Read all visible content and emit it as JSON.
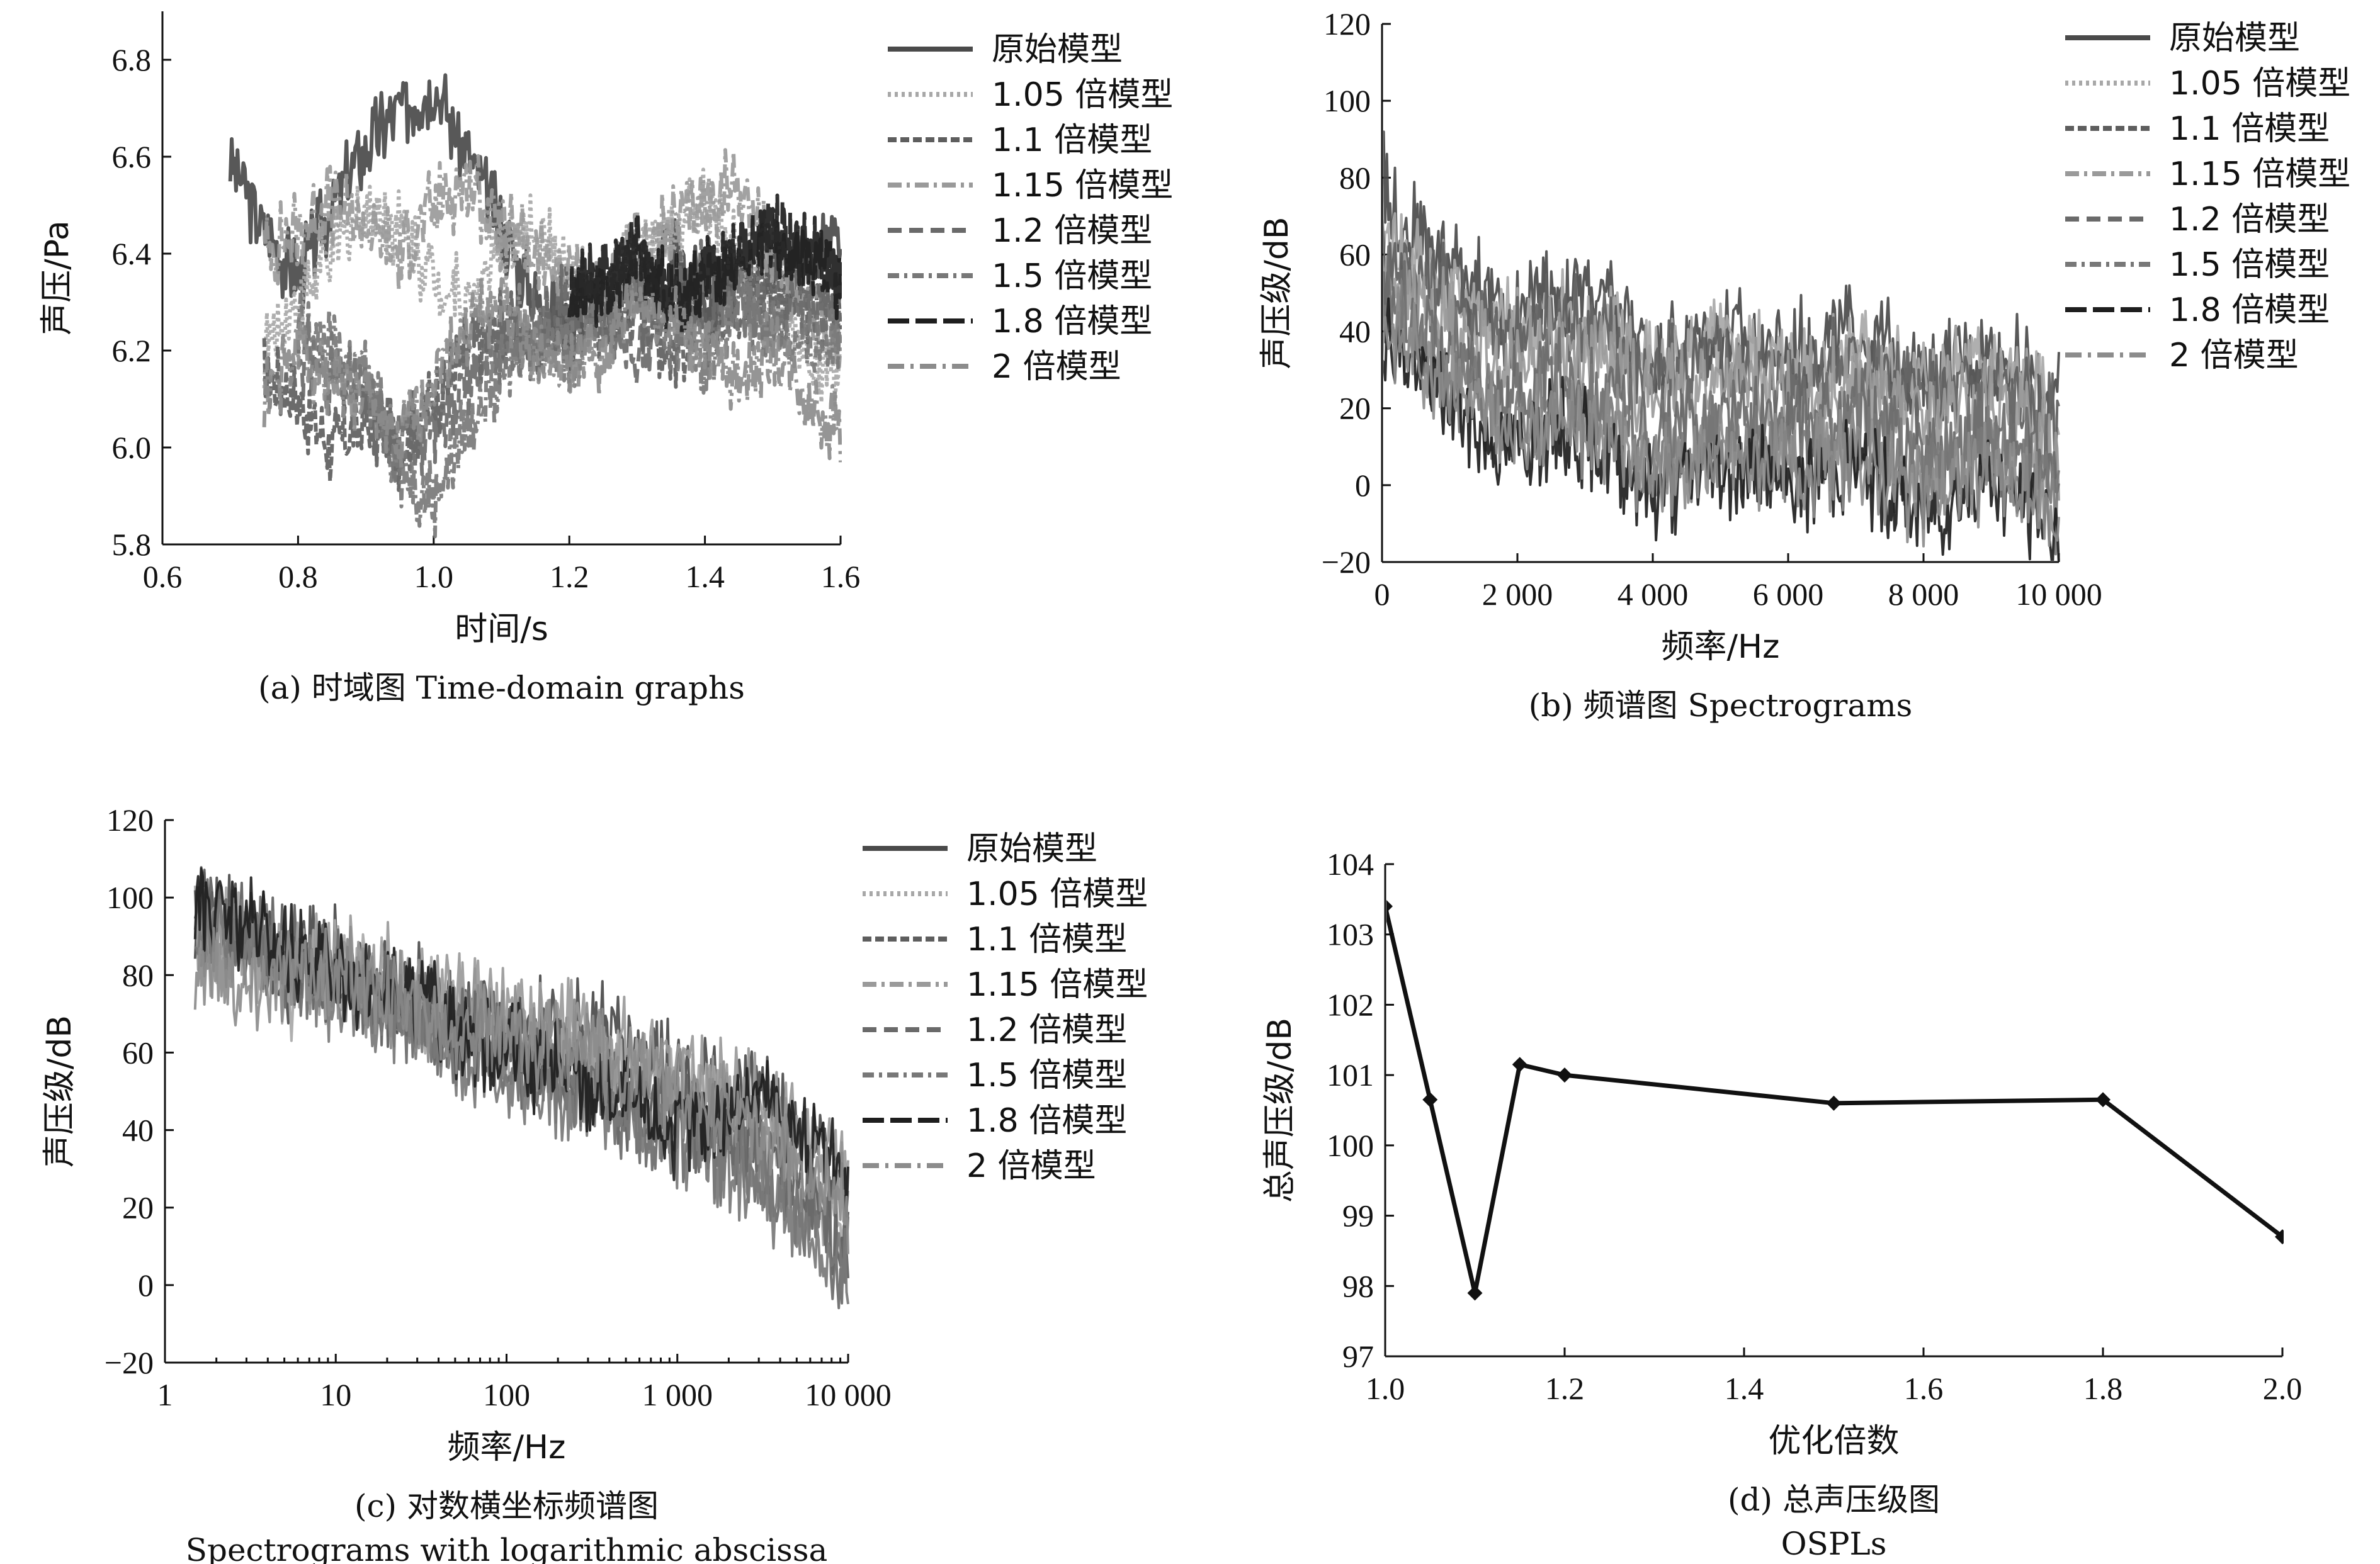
{
  "colors": {
    "original": "#4a4a4a",
    "m105": "#a8a8a8",
    "m11": "#5e5e5e",
    "m115": "#9a9a9a",
    "m12": "#6a6a6a",
    "m15": "#787878",
    "m18": "#1e1e1e",
    "m2": "#8c8c8c",
    "ospl": "#111111"
  },
  "legend": [
    {
      "label": "原始模型",
      "dash": "",
      "key": "original"
    },
    {
      "label": "1.05 倍模型",
      "dash": "5 6",
      "key": "m105"
    },
    {
      "label": "1.1 倍模型",
      "dash": "14 6",
      "key": "m11"
    },
    {
      "label": "1.15 倍模型",
      "dash": "22 8 5 8",
      "key": "m115"
    },
    {
      "label": "1.2 倍模型",
      "dash": "22 12",
      "key": "m12"
    },
    {
      "label": "1.5 倍模型",
      "dash": "18 8 5 8",
      "key": "m15"
    },
    {
      "label": "1.8 倍模型",
      "dash": "34 10",
      "key": "m18"
    },
    {
      "label": "2 倍模型",
      "dash": "26 10 5 10",
      "key": "m2"
    }
  ],
  "chart_data": [
    {
      "id": "a",
      "type": "line",
      "caption": "(a) 时域图 Time-domain graphs",
      "xlabel": "时间/s",
      "ylabel": "声压/Pa",
      "xlim": [
        0.6,
        1.6
      ],
      "ylim": [
        5.8,
        6.9
      ],
      "xticks": [
        0.6,
        0.8,
        1.0,
        1.2,
        1.4,
        1.6
      ],
      "xtick_labels": [
        "0.6",
        "0.8",
        "1.0",
        "1.2",
        "1.4",
        "1.6"
      ],
      "yticks": [
        5.8,
        6.0,
        6.2,
        6.4,
        6.6,
        6.8
      ],
      "ytick_labels": [
        "5.8",
        "6.0",
        "6.2",
        "6.4",
        "6.6",
        "6.8"
      ],
      "series": [
        {
          "name": "原始模型",
          "key": "original",
          "x": [
            0.7,
            0.75,
            0.8,
            0.85,
            0.9,
            0.95,
            1.0,
            1.05,
            1.1,
            1.15,
            1.2,
            1.25,
            1.3,
            1.35,
            1.4,
            1.45,
            1.5,
            1.55,
            1.6
          ],
          "y": [
            6.6,
            6.45,
            6.35,
            6.5,
            6.62,
            6.7,
            6.75,
            6.6,
            6.45,
            6.3,
            6.25,
            6.3,
            6.35,
            6.4,
            6.3,
            6.35,
            6.4,
            6.38,
            6.42
          ]
        },
        {
          "name": "1.05 倍模型",
          "key": "m105",
          "x": [
            0.75,
            0.8,
            0.85,
            0.9,
            0.95,
            1.0,
            1.05,
            1.1,
            1.15,
            1.2,
            1.25,
            1.3,
            1.35,
            1.4,
            1.45,
            1.5,
            1.55,
            1.6
          ],
          "y": [
            6.2,
            6.3,
            6.4,
            6.5,
            6.45,
            6.35,
            6.3,
            6.4,
            6.45,
            6.35,
            6.3,
            6.4,
            6.45,
            6.5,
            6.4,
            6.3,
            6.2,
            6.15
          ]
        },
        {
          "name": "1.1 倍模型",
          "key": "m11",
          "x": [
            0.75,
            0.8,
            0.85,
            0.9,
            0.95,
            1.0,
            1.05,
            1.1,
            1.15,
            1.2,
            1.25,
            1.3,
            1.35,
            1.4,
            1.45,
            1.5,
            1.55,
            1.6
          ],
          "y": [
            6.15,
            6.1,
            6.0,
            6.05,
            6.0,
            6.1,
            6.2,
            6.25,
            6.2,
            6.3,
            6.25,
            6.3,
            6.2,
            6.25,
            6.3,
            6.35,
            6.3,
            6.3
          ]
        },
        {
          "name": "1.15 倍模型",
          "key": "m115",
          "x": [
            0.75,
            0.8,
            0.85,
            0.9,
            0.95,
            1.0,
            1.05,
            1.1,
            1.15,
            1.2,
            1.25,
            1.3,
            1.35,
            1.4,
            1.45,
            1.5,
            1.55,
            1.6
          ],
          "y": [
            6.4,
            6.45,
            6.5,
            6.45,
            6.4,
            6.5,
            6.55,
            6.45,
            6.4,
            6.35,
            6.3,
            6.4,
            6.45,
            6.5,
            6.55,
            6.4,
            6.3,
            6.2
          ]
        },
        {
          "name": "1.2 倍模型",
          "key": "m12",
          "x": [
            0.8,
            0.85,
            0.9,
            0.95,
            1.0,
            1.05,
            1.1,
            1.15,
            1.2,
            1.25,
            1.3,
            1.35,
            1.4,
            1.45,
            1.5,
            1.55,
            1.6
          ],
          "y": [
            6.2,
            6.15,
            6.1,
            6.0,
            6.05,
            6.15,
            6.2,
            6.25,
            6.3,
            6.25,
            6.2,
            6.3,
            6.35,
            6.3,
            6.25,
            6.3,
            6.28
          ]
        },
        {
          "name": "1.5 倍模型",
          "key": "m15",
          "x": [
            0.8,
            0.85,
            0.9,
            0.95,
            1.0,
            1.05,
            1.1,
            1.15,
            1.2,
            1.25,
            1.3,
            1.35,
            1.4,
            1.45,
            1.5,
            1.55,
            1.6
          ],
          "y": [
            6.25,
            6.2,
            6.15,
            5.95,
            5.9,
            6.05,
            6.15,
            6.25,
            6.2,
            6.3,
            6.35,
            6.25,
            6.2,
            6.3,
            6.25,
            6.2,
            6.25
          ]
        },
        {
          "name": "1.8 倍模型",
          "key": "m18",
          "x": [
            1.2,
            1.25,
            1.3,
            1.35,
            1.4,
            1.45,
            1.5,
            1.55,
            1.6
          ],
          "y": [
            6.3,
            6.35,
            6.4,
            6.3,
            6.35,
            6.4,
            6.45,
            6.4,
            6.35
          ]
        },
        {
          "name": "2 倍模型",
          "key": "m2",
          "x": [
            0.75,
            0.8,
            0.85,
            0.9,
            0.95,
            1.0,
            1.05,
            1.1,
            1.15,
            1.2,
            1.25,
            1.3,
            1.35,
            1.4,
            1.45,
            1.5,
            1.55,
            1.6
          ],
          "y": [
            6.1,
            6.2,
            6.15,
            6.1,
            6.0,
            6.15,
            6.25,
            6.3,
            6.2,
            6.15,
            6.2,
            6.3,
            6.25,
            6.2,
            6.15,
            6.2,
            6.1,
            6.05
          ]
        }
      ]
    },
    {
      "id": "b",
      "type": "line",
      "caption": "(b) 频谱图 Spectrograms",
      "xlabel": "频率/Hz",
      "ylabel": "声压级/dB",
      "xlim": [
        0,
        10000
      ],
      "ylim": [
        -20,
        120
      ],
      "xticks": [
        0,
        2000,
        4000,
        6000,
        8000,
        10000
      ],
      "xtick_labels": [
        "0",
        "2 000",
        "4 000",
        "6 000",
        "8 000",
        "10 000"
      ],
      "yticks": [
        -20,
        0,
        20,
        40,
        60,
        80,
        100,
        120
      ],
      "ytick_labels": [
        "−20",
        "0",
        "20",
        "40",
        "60",
        "80",
        "100",
        "120"
      ],
      "series": [
        {
          "name": "原始模型",
          "key": "original",
          "x": [
            0,
            50,
            200,
            500,
            1000,
            1500,
            1800,
            2200,
            2600,
            3000,
            3500,
            4000,
            4500,
            5000,
            5500,
            6000,
            6500,
            7000,
            7500,
            8000,
            8500,
            9000,
            9500,
            10000
          ],
          "y": [
            100,
            80,
            70,
            65,
            58,
            50,
            42,
            48,
            52,
            50,
            45,
            35,
            38,
            40,
            38,
            35,
            37,
            40,
            36,
            28,
            32,
            35,
            30,
            22
          ]
        },
        {
          "name": "1.05 倍模型",
          "key": "m105",
          "x": [
            0,
            500,
            1000,
            1800,
            2600,
            3500,
            4000,
            5000,
            6000,
            7000,
            8000,
            9000,
            10000
          ],
          "y": [
            65,
            58,
            52,
            40,
            45,
            40,
            30,
            35,
            30,
            35,
            25,
            30,
            18
          ]
        },
        {
          "name": "1.1 倍模型",
          "key": "m11",
          "x": [
            0,
            500,
            1000,
            1800,
            2600,
            3500,
            4000,
            5000,
            6000,
            7000,
            8000,
            9000,
            10000
          ],
          "y": [
            60,
            55,
            50,
            38,
            44,
            38,
            28,
            33,
            28,
            33,
            22,
            28,
            15
          ]
        },
        {
          "name": "1.15 倍模型",
          "key": "m115",
          "x": [
            0,
            500,
            1000,
            1800,
            2600,
            3500,
            4000,
            5000,
            6000,
            7000,
            8000,
            9000,
            10000
          ],
          "y": [
            55,
            48,
            42,
            30,
            36,
            30,
            22,
            27,
            22,
            27,
            16,
            22,
            8
          ]
        },
        {
          "name": "1.2 倍模型",
          "key": "m12",
          "x": [
            0,
            500,
            1000,
            1800,
            2600,
            3500,
            4000,
            5000,
            6000,
            7000,
            8000,
            9000,
            10000
          ],
          "y": [
            50,
            42,
            35,
            22,
            28,
            22,
            12,
            18,
            14,
            18,
            8,
            14,
            2
          ]
        },
        {
          "name": "1.5 倍模型",
          "key": "m15",
          "x": [
            0,
            500,
            1000,
            1800,
            2600,
            3500,
            4000,
            5000,
            6000,
            7000,
            8000,
            9000,
            10000
          ],
          "y": [
            45,
            38,
            30,
            15,
            22,
            15,
            5,
            12,
            8,
            12,
            2,
            8,
            -5
          ]
        },
        {
          "name": "1.8 倍模型",
          "key": "m18",
          "x": [
            0,
            500,
            1000,
            1800,
            2600,
            3500,
            4000,
            5000,
            6000,
            7000,
            8000,
            9000,
            10000
          ],
          "y": [
            40,
            30,
            22,
            8,
            15,
            8,
            -2,
            5,
            0,
            5,
            -8,
            2,
            -12
          ]
        },
        {
          "name": "2 倍模型",
          "key": "m2",
          "x": [
            0,
            500,
            1000,
            1800,
            2600,
            3500,
            4000,
            5000,
            6000,
            7000,
            8000,
            9000,
            10000
          ],
          "y": [
            42,
            35,
            28,
            12,
            18,
            12,
            2,
            8,
            4,
            8,
            -4,
            4,
            -10
          ]
        }
      ]
    },
    {
      "id": "c",
      "type": "line",
      "caption": "(c) 对数横坐标频谱图",
      "caption2": "Spectrograms with logarithmic abscissa",
      "xlabel": "频率/Hz",
      "ylabel": "声压级/dB",
      "xscale": "log",
      "xlim": [
        1,
        10000
      ],
      "ylim": [
        -20,
        120
      ],
      "xticks": [
        1,
        10,
        100,
        1000,
        10000
      ],
      "xtick_labels": [
        "1",
        "10",
        "100",
        "1 000",
        "10 000"
      ],
      "yticks": [
        -20,
        0,
        20,
        40,
        60,
        80,
        100,
        120
      ],
      "ytick_labels": [
        "−20",
        "0",
        "20",
        "40",
        "60",
        "80",
        "100",
        "120"
      ],
      "series": [
        {
          "name": "原始模型",
          "key": "original",
          "x": [
            1.5,
            2,
            3,
            5,
            8,
            10,
            20,
            50,
            100,
            200,
            500,
            1000,
            2000,
            3000,
            5000,
            8000,
            10000
          ],
          "y": [
            97,
            94,
            90,
            80,
            88,
            84,
            78,
            72,
            70,
            66,
            64,
            58,
            46,
            52,
            40,
            32,
            20
          ]
        },
        {
          "name": "1.05 倍模型",
          "key": "m105",
          "x": [
            1.5,
            3,
            6,
            10,
            30,
            100,
            300,
            1000,
            3000,
            10000
          ],
          "y": [
            92,
            90,
            75,
            82,
            74,
            62,
            55,
            48,
            38,
            15
          ]
        },
        {
          "name": "1.1 倍模型",
          "key": "m11",
          "x": [
            1.5,
            3,
            6,
            10,
            30,
            100,
            300,
            1000,
            3000,
            10000
          ],
          "y": [
            95,
            92,
            85,
            80,
            72,
            60,
            52,
            42,
            35,
            10
          ]
        },
        {
          "name": "1.15 倍模型",
          "key": "m115",
          "x": [
            1.5,
            2.5,
            4,
            8,
            20,
            60,
            200,
            800,
            3000,
            10000
          ],
          "y": [
            89,
            88,
            86,
            83,
            80,
            72,
            66,
            58,
            46,
            30
          ]
        },
        {
          "name": "1.2 倍模型",
          "key": "m12",
          "x": [
            1.5,
            3,
            6,
            10,
            30,
            100,
            300,
            1000,
            3000,
            10000
          ],
          "y": [
            96,
            90,
            82,
            78,
            70,
            58,
            50,
            40,
            30,
            5
          ]
        },
        {
          "name": "1.5 倍模型",
          "key": "m15",
          "x": [
            1.5,
            3,
            6,
            10,
            30,
            100,
            300,
            1000,
            3000,
            10000
          ],
          "y": [
            93,
            88,
            80,
            76,
            68,
            55,
            48,
            38,
            28,
            0
          ]
        },
        {
          "name": "1.8 倍模型",
          "key": "m18",
          "x": [
            1.5,
            3,
            6,
            10,
            30,
            100,
            300,
            1000,
            3000,
            10000
          ],
          "y": [
            99,
            92,
            84,
            80,
            72,
            60,
            52,
            40,
            50,
            25
          ]
        },
        {
          "name": "2 倍模型",
          "key": "m2",
          "x": [
            1.5,
            2,
            3,
            5,
            10,
            30,
            100,
            300,
            1000,
            3000,
            10000
          ],
          "y": [
            85,
            80,
            76,
            82,
            80,
            72,
            64,
            60,
            50,
            40,
            20
          ]
        }
      ]
    },
    {
      "id": "d",
      "type": "line",
      "caption": "(d) 总声压级图",
      "caption2": "OSPLs",
      "xlabel": "优化倍数",
      "ylabel": "总声压级/dB",
      "xlim": [
        1.0,
        2.0
      ],
      "ylim": [
        97,
        104
      ],
      "xticks": [
        1.0,
        1.2,
        1.4,
        1.6,
        1.8,
        2.0
      ],
      "xtick_labels": [
        "1.0",
        "1.2",
        "1.4",
        "1.6",
        "1.8",
        "2.0"
      ],
      "yticks": [
        97,
        98,
        99,
        100,
        101,
        102,
        103,
        104
      ],
      "ytick_labels": [
        "97",
        "98",
        "99",
        "100",
        "101",
        "102",
        "103",
        "104"
      ],
      "series": [
        {
          "key": "ospl",
          "markers": true,
          "x": [
            1.0,
            1.05,
            1.1,
            1.15,
            1.2,
            1.5,
            1.8,
            2.0
          ],
          "y": [
            103.4,
            100.65,
            97.9,
            101.15,
            101.0,
            100.6,
            100.65,
            98.7
          ]
        }
      ]
    }
  ]
}
